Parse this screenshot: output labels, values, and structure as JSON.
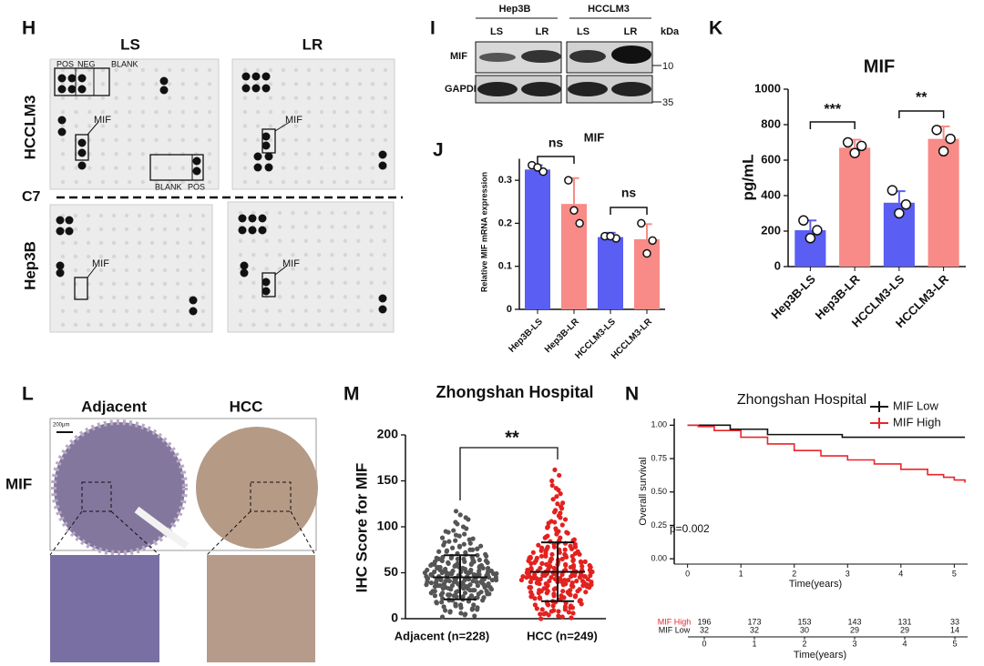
{
  "figure_h": {
    "label": "H",
    "columns": [
      "LS",
      "LR"
    ],
    "rows": [
      "HCCLM3",
      "Hep3B"
    ],
    "divider": "C7",
    "array_labels": [
      "POS",
      "NEG",
      "BLANK"
    ],
    "mif_labels": [
      "MIF",
      "MIF",
      "MIF",
      "MIF"
    ],
    "corner_labels": [
      "BLANK",
      "POS"
    ]
  },
  "figure_i": {
    "label": "I",
    "cell_lines": [
      "Hep3B",
      "HCCLM3"
    ],
    "lanes": [
      "LS",
      "LR",
      "LS",
      "LR"
    ],
    "unit": "kDa",
    "proteins": [
      "MIF",
      "GAPDH"
    ],
    "markers": [
      "10",
      "35"
    ]
  },
  "figure_l": {
    "label": "L",
    "columns": [
      "Adjacent",
      "HCC"
    ],
    "row": "MIF",
    "scale_bar": "200μm"
  },
  "chart_data": [
    {
      "type": "bar",
      "panel": "J",
      "title": "MIF",
      "ylabel": "Relative MIF mRNA expression",
      "categories": [
        "Hep3B-LS",
        "Hep3B-LR",
        "HCCLM3-LS",
        "HCCLM3-LR"
      ],
      "values": [
        0.325,
        0.245,
        0.168,
        0.163
      ],
      "errors": [
        0.01,
        0.06,
        0.01,
        0.035
      ],
      "points": [
        [
          0.335,
          0.32,
          0.33
        ],
        [
          0.3,
          0.2,
          0.23
        ],
        [
          0.17,
          0.165,
          0.17
        ],
        [
          0.2,
          0.16,
          0.13
        ]
      ],
      "colors": [
        "#5a5ef2",
        "#f88b87",
        "#5a5ef2",
        "#f88b87"
      ],
      "ylim": [
        0,
        0.35
      ],
      "yticks": [
        0,
        0.1,
        0.2,
        0.3
      ],
      "annotations": [
        "ns",
        "ns"
      ]
    },
    {
      "type": "bar",
      "panel": "K",
      "title": "MIF",
      "ylabel": "pg/mL",
      "categories": [
        "Hep3B-LS",
        "Hep3B-LR",
        "HCCLM3-LS",
        "HCCLM3-LR"
      ],
      "values": [
        205,
        670,
        360,
        720
      ],
      "errors": [
        55,
        45,
        65,
        70
      ],
      "points": [
        [
          260,
          205,
          160
        ],
        [
          700,
          680,
          640
        ],
        [
          430,
          350,
          300
        ],
        [
          770,
          720,
          650
        ]
      ],
      "colors": [
        "#5a5ef2",
        "#f88b87",
        "#5a5ef2",
        "#f88b87"
      ],
      "ylim": [
        0,
        1000
      ],
      "yticks": [
        0,
        200,
        400,
        600,
        800,
        1000
      ],
      "annotations": [
        "***",
        "**"
      ]
    },
    {
      "type": "dotplot",
      "panel": "M",
      "title": "Zhongshan Hospital",
      "ylabel": "IHC Score for MIF",
      "categories": [
        "Adjacent (n=228)",
        "HCC (n=249)"
      ],
      "colors": [
        "#555555",
        "#e3211f"
      ],
      "mean": [
        45,
        51
      ],
      "sd": [
        24,
        32
      ],
      "ylim": [
        0,
        200
      ],
      "yticks": [
        0,
        50,
        100,
        150,
        200
      ],
      "annotations": [
        "**"
      ],
      "values": [
        [
          2,
          5,
          8,
          10,
          12,
          13,
          15,
          16,
          18,
          19,
          20,
          20,
          21,
          22,
          23,
          24,
          25,
          25,
          26,
          27,
          28,
          28,
          29,
          30,
          30,
          31,
          32,
          32,
          33,
          33,
          34,
          35,
          35,
          36,
          36,
          37,
          37,
          38,
          38,
          39,
          39,
          40,
          40,
          40,
          41,
          41,
          42,
          42,
          43,
          43,
          44,
          44,
          45,
          45,
          45,
          46,
          46,
          47,
          47,
          48,
          48,
          49,
          49,
          50,
          50,
          50,
          51,
          51,
          52,
          52,
          53,
          53,
          54,
          55,
          55,
          56,
          57,
          58,
          59,
          60,
          60,
          61,
          62,
          63,
          64,
          65,
          66,
          67,
          68,
          70,
          72,
          74,
          76,
          78,
          80,
          82,
          85,
          88,
          92,
          96,
          3,
          6,
          9,
          11,
          14,
          17,
          19,
          21,
          23,
          24,
          26,
          27,
          29,
          30,
          31,
          33,
          34,
          35,
          36,
          37,
          38,
          39,
          40,
          41,
          42,
          43,
          44,
          45,
          46,
          47,
          48,
          49,
          50,
          51,
          52,
          53,
          54,
          55,
          56,
          57,
          58,
          59,
          61,
          63,
          65,
          67,
          69,
          71,
          73,
          75,
          77,
          79,
          81,
          84,
          87,
          90,
          94,
          98,
          103,
          108,
          4,
          7,
          12,
          15,
          18,
          22,
          25,
          28,
          31,
          34,
          36,
          38,
          40,
          42,
          44,
          46,
          48,
          50,
          52,
          54,
          56,
          58,
          60,
          62,
          64,
          66,
          68,
          70,
          73,
          76,
          79,
          83,
          86,
          91,
          95,
          100,
          105,
          110,
          113,
          117,
          10,
          14,
          18,
          22,
          26,
          30,
          33,
          36,
          39,
          41,
          43,
          45,
          47,
          49,
          51,
          53,
          55,
          57,
          59,
          62,
          20,
          27,
          35,
          42,
          48,
          55,
          65,
          75
        ],
        [
          0,
          2,
          4,
          6,
          8,
          10,
          12,
          14,
          15,
          17,
          18,
          20,
          21,
          22,
          24,
          25,
          26,
          27,
          28,
          29,
          30,
          31,
          32,
          33,
          34,
          35,
          36,
          37,
          38,
          38,
          39,
          40,
          40,
          41,
          41,
          42,
          42,
          43,
          43,
          44,
          44,
          45,
          45,
          46,
          46,
          47,
          47,
          48,
          48,
          49,
          49,
          50,
          50,
          51,
          51,
          52,
          52,
          53,
          54,
          55,
          56,
          57,
          58,
          59,
          60,
          61,
          62,
          63,
          64,
          65,
          66,
          67,
          68,
          70,
          72,
          74,
          76,
          78,
          80,
          82,
          84,
          86,
          88,
          90,
          93,
          96,
          99,
          102,
          105,
          108,
          112,
          116,
          120,
          125,
          130,
          136,
          142,
          150,
          156,
          162,
          1,
          3,
          5,
          7,
          9,
          11,
          13,
          16,
          19,
          21,
          23,
          25,
          27,
          29,
          31,
          33,
          35,
          37,
          39,
          41,
          43,
          45,
          47,
          49,
          51,
          53,
          55,
          57,
          59,
          61,
          63,
          65,
          67,
          69,
          71,
          73,
          75,
          77,
          79,
          81,
          5,
          10,
          15,
          20,
          25,
          28,
          30,
          32,
          34,
          36,
          38,
          40,
          42,
          44,
          46,
          48,
          50,
          52,
          54,
          56,
          58,
          60,
          62,
          64,
          66,
          68,
          70,
          72,
          75,
          78,
          81,
          85,
          89,
          94,
          98,
          104,
          110,
          118,
          126,
          140,
          6,
          12,
          18,
          22,
          26,
          30,
          34,
          38,
          42,
          46,
          50,
          54,
          58,
          62,
          66,
          70,
          74,
          78,
          83,
          88,
          14,
          19,
          24,
          29,
          33,
          37,
          41,
          44,
          47,
          50,
          53,
          56,
          59,
          62,
          65,
          68,
          71,
          92,
          100,
          115,
          8,
          16,
          23,
          30,
          36,
          41,
          46,
          51,
          57,
          63,
          69,
          76,
          85,
          95,
          106,
          122,
          133,
          145,
          28,
          48,
          35,
          40,
          45,
          50,
          55,
          60,
          39,
          47,
          53
        ]
      ]
    },
    {
      "type": "line",
      "panel": "N",
      "title": "Zhongshan Hospital",
      "ylabel": "Overall survival",
      "xlabel": "Time(years)",
      "annotations": [
        "p=0.002"
      ],
      "xlim": [
        -0.25,
        5.25
      ],
      "xticks": [
        0,
        1,
        2,
        3,
        4,
        5
      ],
      "ylim": [
        -0.04,
        1.05
      ],
      "yticks": [
        {
          "value": 0,
          "label": "0.00"
        },
        {
          "value": 0.25,
          "label": "0.25"
        },
        {
          "value": 0.5,
          "label": "0.50"
        },
        {
          "value": 0.75,
          "label": "0.75"
        },
        {
          "value": 1,
          "label": "1.00"
        }
      ],
      "series": [
        {
          "name": "MIF Low",
          "color": "#111111",
          "x": [
            0,
            0.3,
            0.8,
            1.5,
            2.9,
            5.2
          ],
          "values": [
            1,
            1,
            0.97,
            0.93,
            0.91,
            0.91
          ]
        },
        {
          "name": "MIF High",
          "color": "#e8262b",
          "x": [
            0,
            0.2,
            0.5,
            1,
            1.5,
            2,
            2.5,
            3,
            3.5,
            4,
            4.5,
            4.8,
            5,
            5.2
          ],
          "values": [
            1,
            0.99,
            0.96,
            0.91,
            0.86,
            0.81,
            0.77,
            0.74,
            0.71,
            0.67,
            0.63,
            0.61,
            0.59,
            0.57
          ]
        }
      ],
      "risk_table": {
        "times": [
          0,
          1,
          2,
          3,
          4,
          5
        ],
        "xlabel": "Time(years)",
        "rows": [
          {
            "name": "MIF High",
            "color": "#e8262b",
            "counts": [
              196,
              173,
              153,
              143,
              131,
              33
            ]
          },
          {
            "name": "MIF Low",
            "color": "#111111",
            "counts": [
              32,
              32,
              30,
              29,
              29,
              14
            ]
          }
        ]
      }
    }
  ]
}
